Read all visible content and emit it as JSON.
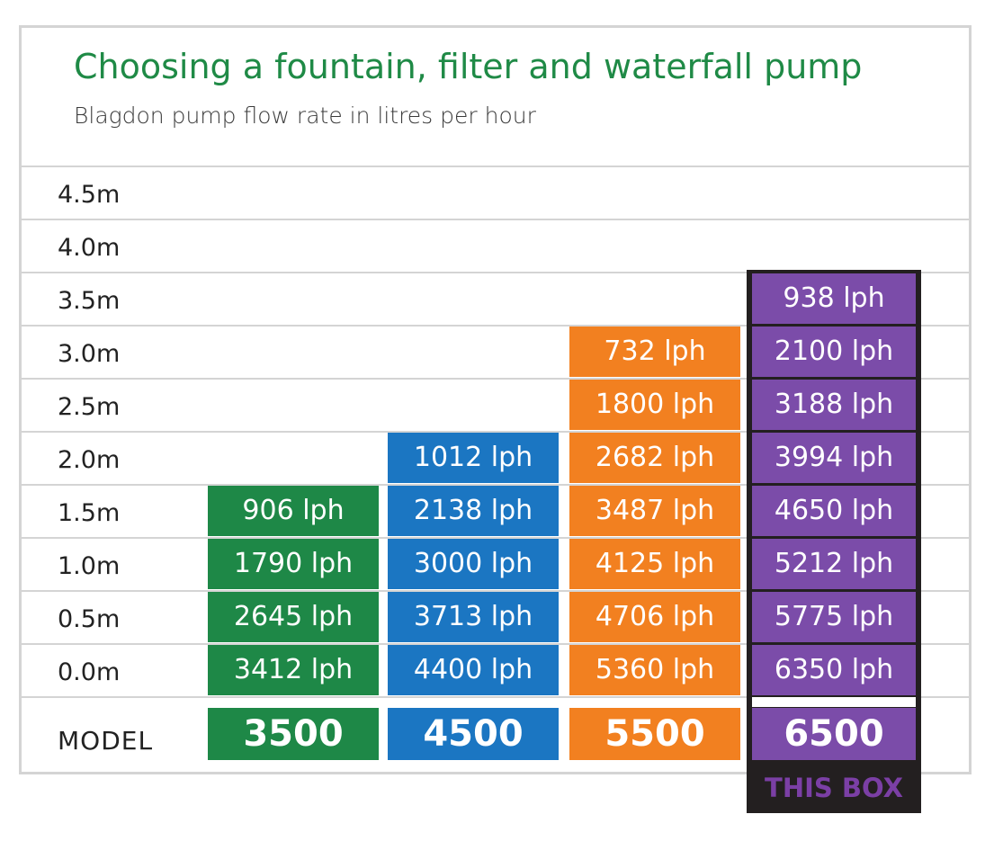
{
  "header": {
    "title": "Choosing a fountain, filter and waterfall pump",
    "subtitle": "Blagdon pump flow rate in litres per hour"
  },
  "model_label": "MODEL",
  "highlight_label": "THIS BOX",
  "chart_data": {
    "type": "table",
    "title": "Choosing a fountain, filter and waterfall pump",
    "subtitle": "Blagdon pump flow rate in litres per hour",
    "row_labels": [
      "4.5m",
      "4.0m",
      "3.5m",
      "3.0m",
      "2.5m",
      "2.0m",
      "1.5m",
      "1.0m",
      "0.5m",
      "0.0m"
    ],
    "heights": [
      4.5,
      4.0,
      3.5,
      3.0,
      2.5,
      2.0,
      1.5,
      1.0,
      0.5,
      0.0
    ],
    "unit": "lph",
    "highlighted_model": "6500",
    "series": [
      {
        "name": "3500",
        "color": "#1e8847",
        "values": [
          null,
          null,
          null,
          null,
          null,
          null,
          906,
          1790,
          2645,
          3412
        ],
        "labels": [
          "",
          "",
          "",
          "",
          "",
          "",
          "906 lph",
          "1790 lph",
          "2645 lph",
          "3412 lph"
        ]
      },
      {
        "name": "4500",
        "color": "#1b76c2",
        "values": [
          null,
          null,
          null,
          null,
          null,
          1012,
          2138,
          3000,
          3713,
          4400
        ],
        "labels": [
          "",
          "",
          "",
          "",
          "",
          "1012 lph",
          "2138 lph",
          "3000 lph",
          "3713 lph",
          "4400 lph"
        ]
      },
      {
        "name": "5500",
        "color": "#f28020",
        "values": [
          null,
          null,
          null,
          732,
          1800,
          2682,
          3487,
          4125,
          4706,
          5360
        ],
        "labels": [
          "",
          "",
          "",
          "732 lph",
          "1800 lph",
          "2682 lph",
          "3487 lph",
          "4125 lph",
          "4706 lph",
          "5360 lph"
        ]
      },
      {
        "name": "6500",
        "color": "#7b4ca9",
        "values": [
          null,
          null,
          938,
          2100,
          3188,
          3994,
          4650,
          5212,
          5775,
          6350
        ],
        "labels": [
          "",
          "",
          "938 lph",
          "2100 lph",
          "3188 lph",
          "3994 lph",
          "4650 lph",
          "5212 lph",
          "5775 lph",
          "6350 lph"
        ]
      }
    ]
  }
}
